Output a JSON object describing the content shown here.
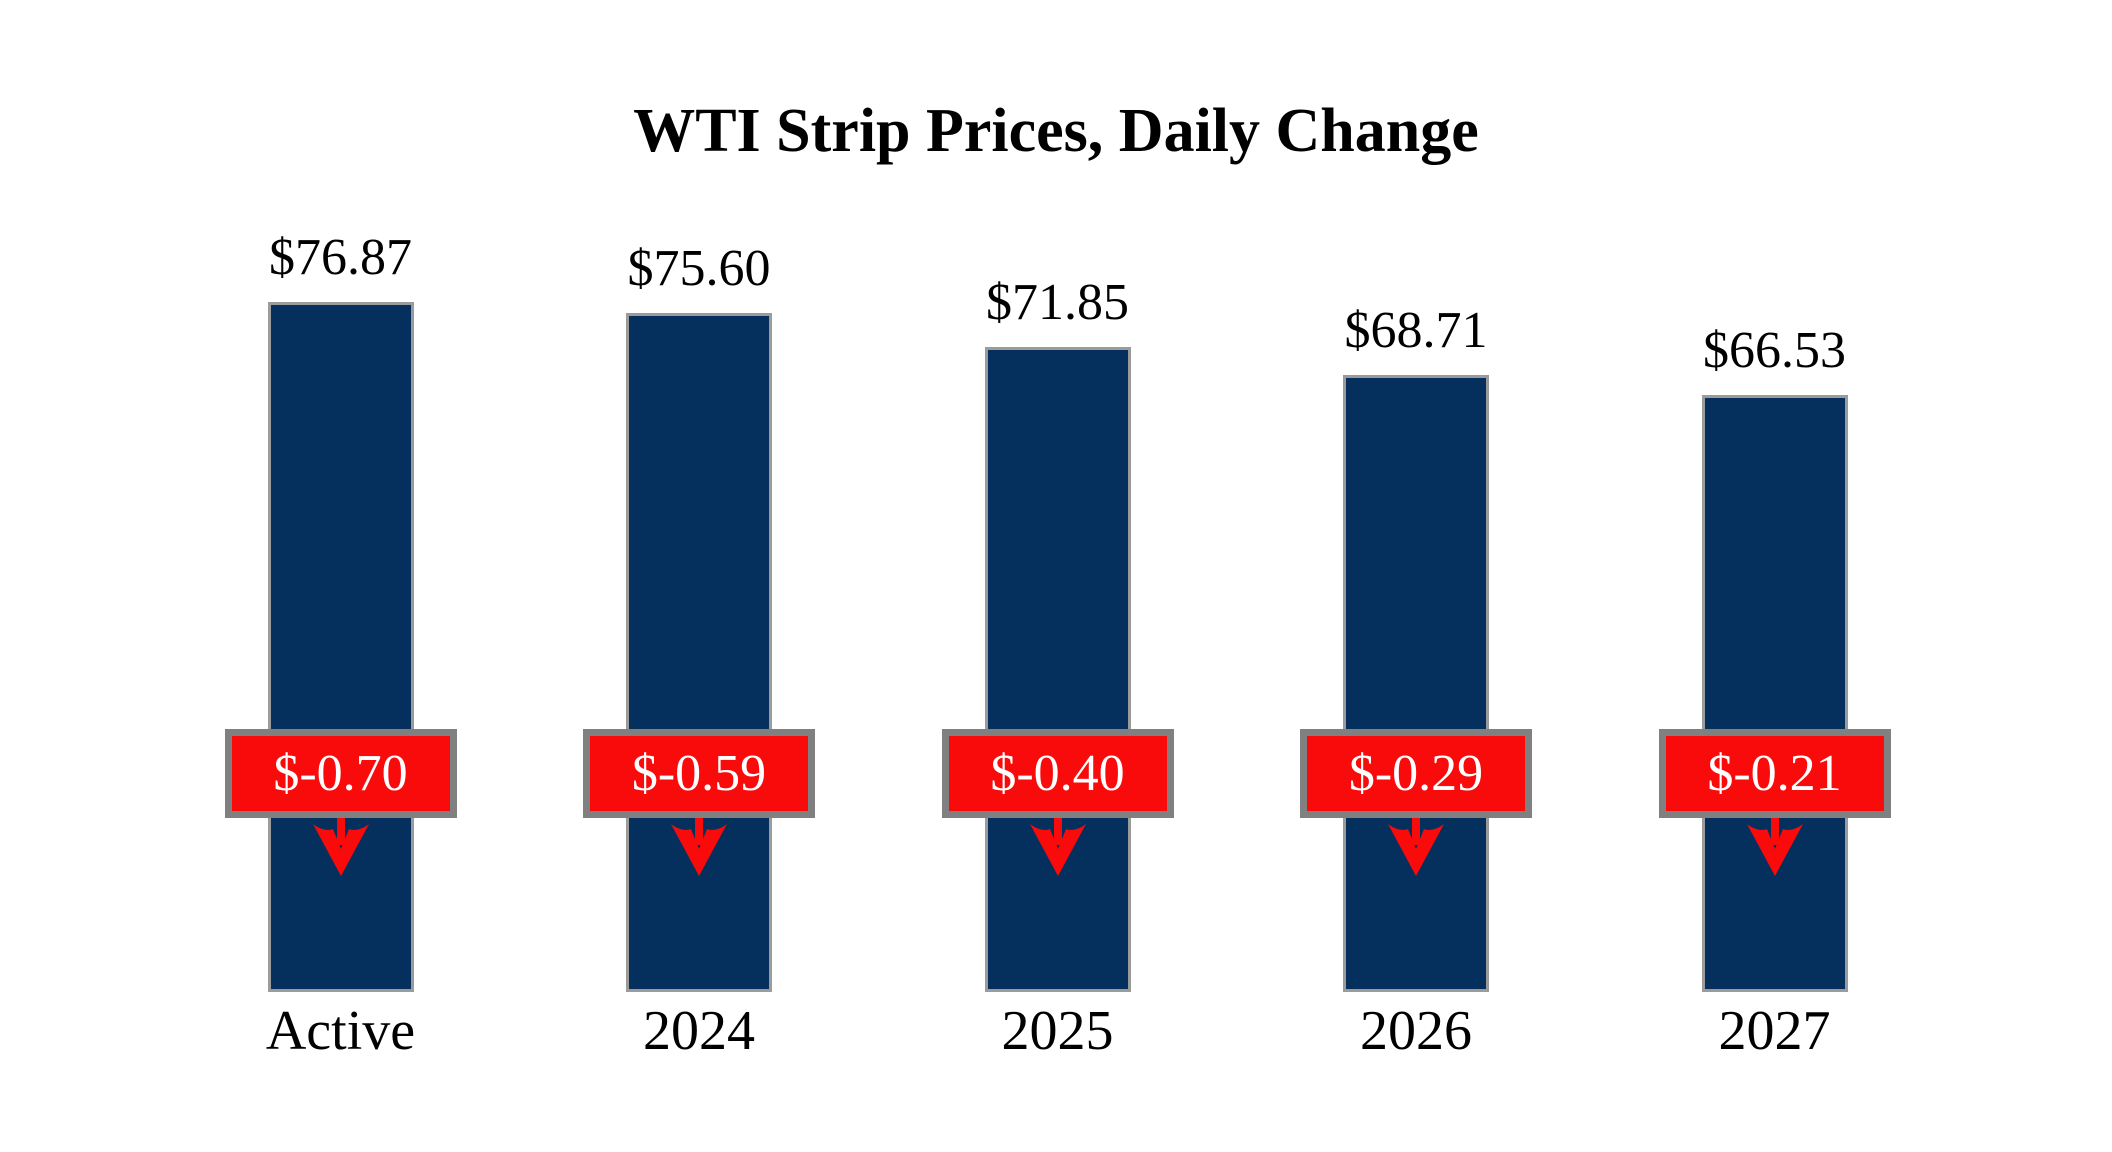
{
  "chart_data": {
    "type": "bar",
    "title": "WTI Strip Prices, Daily Change",
    "categories": [
      "Active",
      "2024",
      "2025",
      "2026",
      "2027"
    ],
    "values": [
      76.87,
      75.6,
      71.85,
      68.71,
      66.53
    ],
    "value_labels": [
      "$76.87",
      "$75.60",
      "$71.85",
      "$68.71",
      "$66.53"
    ],
    "daily_changes": [
      -0.7,
      -0.59,
      -0.4,
      -0.29,
      -0.21
    ],
    "change_labels": [
      "$-0.70",
      "$-0.59",
      "$-0.40",
      "$-0.29",
      "$-0.21"
    ],
    "xlabel": "",
    "ylabel": "",
    "ylim": [
      0,
      76.87
    ],
    "grid": false,
    "legend": false,
    "colors": {
      "bar_fill": "#052f5c",
      "bar_border": "#9b9b9b",
      "badge_fill": "#fa0b0b",
      "badge_border": "#808080",
      "badge_text": "#ffffff",
      "arrow": "#fa0b0b",
      "label_text": "#000000",
      "background": "#ffffff"
    }
  }
}
